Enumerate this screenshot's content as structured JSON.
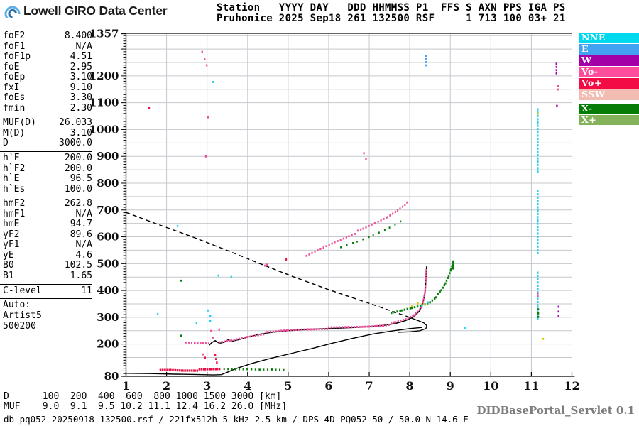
{
  "header": {
    "logo_text": "Lowell GIRO Data Center",
    "station_line1": "Station   YYYY DAY   DDD HHMMSS P1  FFS S AXN PPS IGA PS",
    "station_line2": "Pruhonice 2025 Sep18 261 132500 RSF     1 713 100 03+ 21"
  },
  "panel": {
    "sections": [
      {
        "rows": [
          [
            "foF2",
            "8.400"
          ],
          [
            "foF1",
            "N/A"
          ],
          [
            "foF1p",
            "4.51"
          ],
          [
            "foE",
            "2.95"
          ],
          [
            "foEp",
            "3.10"
          ],
          [
            "fxI",
            "9.10"
          ],
          [
            "foEs",
            "3.30"
          ],
          [
            "fmin",
            "2.30"
          ]
        ]
      },
      {
        "rows": [
          [
            "MUF(D)",
            "26.033"
          ],
          [
            "M(D)",
            "3.10"
          ],
          [
            "D",
            "3000.0"
          ]
        ]
      },
      {
        "rows": [
          [
            "h`F",
            "200.0"
          ],
          [
            "h`F2",
            "200.0"
          ],
          [
            "h`E",
            "96.5"
          ],
          [
            "h`Es",
            "100.0"
          ]
        ]
      },
      {
        "rows": [
          [
            "hmF2",
            "262.8"
          ],
          [
            "hmF1",
            "N/A"
          ],
          [
            "hmE",
            "94.7"
          ],
          [
            "yF2",
            "89.6"
          ],
          [
            "yF1",
            "N/A"
          ],
          [
            "yE",
            "4.6"
          ],
          [
            "B0",
            "102.5"
          ],
          [
            "B1",
            "1.65"
          ]
        ]
      },
      {
        "rows": [
          [
            "C-level",
            "11"
          ]
        ]
      }
    ],
    "auto_lines": [
      "Auto:",
      "Artist5",
      "500200"
    ]
  },
  "legend": [
    {
      "label": "NNE",
      "color": "#00d8ee"
    },
    {
      "label": "E",
      "color": "#42a1f1"
    },
    {
      "label": "W",
      "color": "#a300a8"
    },
    {
      "label": "Vo-",
      "color": "#ff4d9e"
    },
    {
      "label": "Vo+",
      "color": "#f30b45"
    },
    {
      "label": "SSW",
      "color": "#f3bcb3"
    },
    {
      "label": "X-",
      "color": "#067d06",
      "gap_before": true
    },
    {
      "label": "X+",
      "color": "#84b25b"
    }
  ],
  "footer": {
    "d_row": "D      100  200  400  600  800 1000 1500 3000 [km]",
    "muf_row": "MUF    9.0  9.1  9.5 10.2 11.1 12.4 16.2 26.0 [MHz]",
    "db_line": "db pq052 20250918 132500.rsf / 221fx512h 5 kHz 2.5 km / DPS-4D PQ052 50 / 50.0 N 14.6 E",
    "servlet": "DIDBasePortal_Servlet 0.1"
  },
  "chart_data": {
    "type": "scatter",
    "title": "Pruhonice Digisonde ionogram 2025 Sep18 132500",
    "xlabel": "[MHz]",
    "ylabel": "[km]",
    "x_range": [
      1,
      12
    ],
    "y_range": [
      80,
      1357
    ],
    "x_ticks": [
      1,
      2,
      3,
      4,
      5,
      6,
      7,
      8,
      9,
      10,
      11,
      12
    ],
    "y_labels": [
      1357,
      1200,
      1100,
      1000,
      900,
      800,
      700,
      600,
      500,
      400,
      300,
      200,
      80
    ],
    "grid": {
      "v_step_mhz": 1,
      "h_step_km": 50,
      "color": "#c4c8ce"
    },
    "colors": {
      "pink": "#f0509b",
      "red": "#e81146",
      "green": "#0a7d0a",
      "cyan": "#25d2ee",
      "blue": "#4aa2f2",
      "purple": "#a800ad",
      "yellow": "#d8c900",
      "black": "#000000"
    },
    "traces": [
      {
        "name": "transmission-curve",
        "style": "dashed",
        "color": "black",
        "width": 1.4,
        "points": [
          [
            1,
            691
          ],
          [
            1.74,
            649
          ],
          [
            2.62,
            601
          ],
          [
            3.5,
            549
          ],
          [
            4.37,
            496
          ],
          [
            5.13,
            451
          ],
          [
            6,
            403
          ],
          [
            7,
            352
          ],
          [
            7.9,
            305
          ]
        ]
      },
      {
        "name": "muf-tangent-hook",
        "style": "line",
        "color": "black",
        "width": 1.3,
        "points": [
          [
            7.9,
            305
          ],
          [
            8.2,
            288
          ],
          [
            8.35,
            279
          ],
          [
            8.42,
            269
          ],
          [
            8.4,
            258
          ],
          [
            8.25,
            250
          ],
          [
            8.0,
            246
          ],
          [
            7.7,
            244
          ]
        ]
      },
      {
        "name": "true-height-profile",
        "style": "line",
        "color": "black",
        "width": 1.4,
        "points": [
          [
            1.0,
            91
          ],
          [
            1.6,
            90
          ],
          [
            2.2,
            88
          ],
          [
            2.7,
            87
          ],
          [
            3.15,
            85
          ],
          [
            3.35,
            86
          ],
          [
            3.5,
            95
          ],
          [
            3.7,
            108
          ],
          [
            4.1,
            128
          ],
          [
            4.6,
            148
          ],
          [
            5.1,
            166
          ],
          [
            5.6,
            184
          ],
          [
            6.1,
            204
          ],
          [
            6.6,
            222
          ],
          [
            7.1,
            238
          ],
          [
            7.6,
            250
          ],
          [
            8.0,
            258
          ],
          [
            8.3,
            262
          ]
        ]
      },
      {
        "name": "f2-o-trace",
        "style": "line",
        "color": "black",
        "width": 1.5,
        "points": [
          [
            3.05,
            196
          ],
          [
            3.12,
            206
          ],
          [
            3.2,
            213
          ],
          [
            3.3,
            203
          ],
          [
            3.42,
            207
          ],
          [
            3.52,
            216
          ],
          [
            3.62,
            211
          ],
          [
            3.8,
            217
          ],
          [
            4.0,
            226
          ],
          [
            4.3,
            237
          ],
          [
            4.6,
            244
          ],
          [
            5.0,
            250
          ],
          [
            5.5,
            255
          ],
          [
            6.0,
            258
          ],
          [
            6.5,
            261
          ],
          [
            7.0,
            265
          ],
          [
            7.35,
            270
          ],
          [
            7.65,
            277
          ],
          [
            7.9,
            288
          ],
          [
            8.1,
            302
          ],
          [
            8.25,
            325
          ],
          [
            8.33,
            355
          ],
          [
            8.38,
            395
          ],
          [
            8.4,
            440
          ],
          [
            8.41,
            478
          ],
          [
            8.42,
            492
          ]
        ]
      },
      {
        "name": "f2-o-dots",
        "style": "dotline",
        "color": "pink",
        "size": 2.3,
        "spacing": 3.8,
        "jitter": 1.2,
        "points": [
          [
            3.3,
            206
          ],
          [
            3.6,
            214
          ],
          [
            4.0,
            229
          ],
          [
            4.5,
            243
          ],
          [
            5.0,
            252
          ],
          [
            5.5,
            257
          ],
          [
            6.0,
            260
          ],
          [
            6.5,
            263
          ],
          [
            7.0,
            267
          ],
          [
            7.35,
            272
          ],
          [
            7.65,
            280
          ],
          [
            7.9,
            292
          ],
          [
            8.1,
            308
          ],
          [
            8.25,
            330
          ],
          [
            8.33,
            360
          ],
          [
            8.38,
            400
          ],
          [
            8.4,
            445
          ],
          [
            8.41,
            480
          ]
        ]
      },
      {
        "name": "f1-pink-flat",
        "style": "dotline",
        "color": "pink",
        "size": 2.0,
        "spacing": 4,
        "jitter": 0.6,
        "points": [
          [
            2.48,
            206
          ],
          [
            2.7,
            205
          ],
          [
            2.9,
            205
          ],
          [
            3.05,
            204
          ]
        ]
      },
      {
        "name": "es-o-trace",
        "style": "dotline",
        "color": "red",
        "size": 2.6,
        "spacing": 3.2,
        "jitter": 1.0,
        "points": [
          [
            1.85,
            103
          ],
          [
            2.1,
            104
          ],
          [
            2.4,
            103
          ],
          [
            2.7,
            104
          ],
          [
            2.95,
            105
          ],
          [
            3.1,
            106
          ],
          [
            3.25,
            107
          ],
          [
            3.35,
            108
          ]
        ]
      },
      {
        "name": "es-x-trace",
        "style": "dotline",
        "color": "green",
        "size": 2.0,
        "spacing": 5.5,
        "jitter": 0.6,
        "points": [
          [
            3.42,
            107
          ],
          [
            3.7,
            106
          ],
          [
            4.0,
            107
          ],
          [
            4.3,
            106
          ],
          [
            4.6,
            107
          ],
          [
            4.95,
            106
          ]
        ]
      },
      {
        "name": "f2-x-trace",
        "style": "dotline",
        "color": "green",
        "size": 2.4,
        "spacing": 4.2,
        "jitter": 0.8,
        "points": [
          [
            7.55,
            316
          ],
          [
            7.8,
            326
          ],
          [
            8.05,
            336
          ],
          [
            8.3,
            346
          ],
          [
            8.5,
            358
          ],
          [
            8.65,
            377
          ],
          [
            8.78,
            400
          ],
          [
            8.88,
            426
          ],
          [
            8.96,
            454
          ],
          [
            9.02,
            480
          ],
          [
            9.06,
            502
          ],
          [
            9.08,
            512
          ]
        ]
      },
      {
        "name": "f2-x-top-bar",
        "style": "line",
        "color": "green",
        "width": 3,
        "points": [
          [
            9.07,
            478
          ],
          [
            9.07,
            512
          ]
        ]
      },
      {
        "name": "second-hop-o",
        "style": "dotline",
        "color": "pink",
        "size": 2.2,
        "spacing": 4.5,
        "jitter": 1.5,
        "points": [
          [
            5.45,
            528
          ],
          [
            5.8,
            556
          ],
          [
            6.15,
            582
          ],
          [
            6.5,
            606
          ],
          [
            6.85,
            628
          ],
          [
            7.15,
            650
          ],
          [
            7.45,
            674
          ],
          [
            7.7,
            700
          ],
          [
            7.88,
            722
          ],
          [
            7.98,
            740
          ]
        ]
      },
      {
        "name": "second-hop-x",
        "style": "dotline",
        "color": "green",
        "size": 2.0,
        "spacing": 9,
        "jitter": 1.5,
        "points": [
          [
            6.3,
            560
          ],
          [
            6.7,
            582
          ],
          [
            7.1,
            606
          ],
          [
            7.5,
            636
          ],
          [
            7.78,
            660
          ]
        ]
      },
      {
        "name": "rfi-column",
        "style": "vcolumn",
        "color": "cyan",
        "f": 11.16,
        "h_from": 300,
        "h_to": 1112
      },
      {
        "name": "scatter-dots",
        "style": "points",
        "size": 2.4,
        "points": [
          [
            1.57,
            1081,
            "red"
          ],
          [
            2.88,
            1290,
            "pink"
          ],
          [
            2.94,
            1262,
            "pink"
          ],
          [
            2.99,
            1240,
            "pink"
          ],
          [
            3.15,
            1178,
            "cyan"
          ],
          [
            3.02,
            1046,
            "pink"
          ],
          [
            2.97,
            900,
            "pink"
          ],
          [
            6.87,
            912,
            "pink"
          ],
          [
            6.92,
            890,
            "pink"
          ],
          [
            2.27,
            641,
            "cyan"
          ],
          [
            2.36,
            437,
            "green"
          ],
          [
            2.36,
            232,
            "green"
          ],
          [
            3.02,
            326,
            "cyan"
          ],
          [
            2.74,
            278,
            "cyan"
          ],
          [
            3.28,
            456,
            "cyan"
          ],
          [
            3.6,
            451,
            "cyan"
          ],
          [
            4.43,
            493,
            "pink"
          ],
          [
            4.48,
            497,
            "pink"
          ],
          [
            4.95,
            516,
            "red"
          ],
          [
            9.37,
            260,
            "cyan"
          ],
          [
            11.29,
            220,
            "yellow"
          ],
          [
            3.08,
            305,
            "cyan"
          ],
          [
            3.08,
            288,
            "cyan"
          ],
          [
            1.78,
            312,
            "cyan"
          ],
          [
            8.4,
            1240,
            "blue"
          ],
          [
            8.4,
            1252,
            "blue"
          ],
          [
            8.4,
            1264,
            "blue"
          ],
          [
            8.4,
            1275,
            "blue"
          ],
          [
            11.62,
            1210,
            "purple"
          ],
          [
            11.62,
            1222,
            "purple"
          ],
          [
            11.62,
            1234,
            "purple"
          ],
          [
            11.62,
            1246,
            "purple"
          ],
          [
            11.63,
            1089,
            "purple"
          ],
          [
            11.66,
            1150,
            "pink"
          ],
          [
            11.66,
            1162,
            "pink"
          ],
          [
            11.67,
            305,
            "purple"
          ],
          [
            11.67,
            322,
            "purple"
          ],
          [
            11.67,
            340,
            "purple"
          ],
          [
            11.16,
            390,
            "pink"
          ],
          [
            11.16,
            378,
            "pink"
          ],
          [
            11.17,
            330,
            "green"
          ],
          [
            11.17,
            315,
            "green"
          ],
          [
            11.17,
            302,
            "green"
          ],
          [
            11.16,
            1060,
            "yellow"
          ],
          [
            8.2,
            352,
            "yellow"
          ],
          [
            8.35,
            349,
            "yellow"
          ],
          [
            8.05,
            341,
            "yellow"
          ],
          [
            8.3,
            345,
            "cyan"
          ],
          [
            8.45,
            356,
            "cyan"
          ],
          [
            2.9,
            162,
            "pink"
          ],
          [
            2.95,
            150,
            "red"
          ],
          [
            3.2,
            160,
            "red"
          ],
          [
            3.22,
            145,
            "red"
          ],
          [
            3.24,
            132,
            "red"
          ],
          [
            3.1,
            250,
            "pink"
          ],
          [
            3.3,
            255,
            "pink"
          ],
          [
            3.15,
            225,
            "pink"
          ]
        ]
      }
    ]
  }
}
